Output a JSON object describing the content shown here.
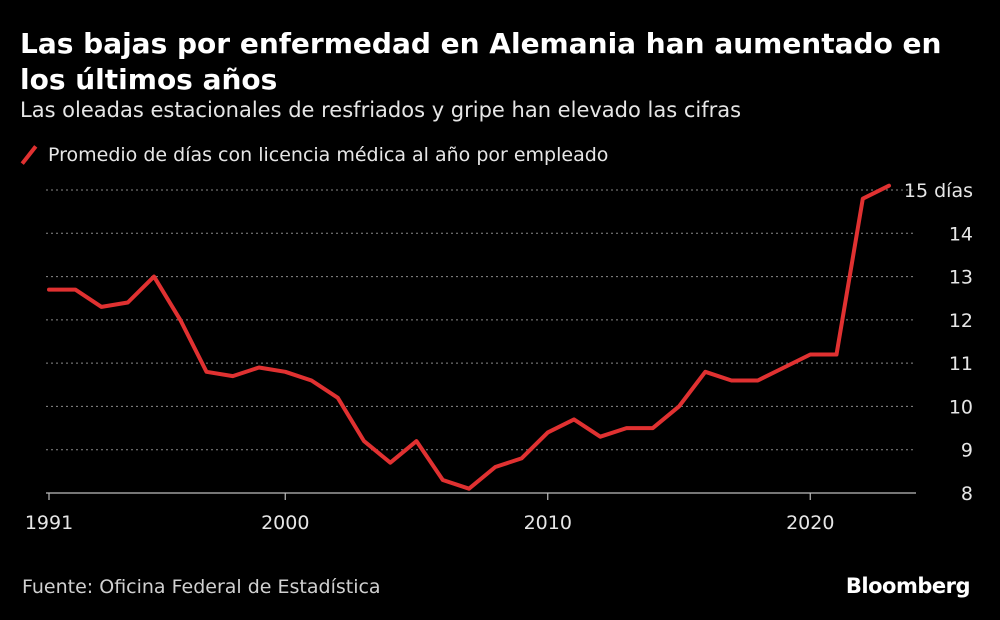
{
  "header": {
    "title": "Las bajas por enfermedad en Alemania han aumentado en los últimos años",
    "subtitle": "Las oleadas estacionales de resfriados y gripe han elevado las cifras"
  },
  "colors": {
    "line": "#e03131",
    "grid": "#8a8a8a",
    "axis": "#bdbdbd",
    "text": "#e6e6e6"
  },
  "chart_data": {
    "type": "line",
    "title": "Las bajas por enfermedad en Alemania han aumentado en los últimos años",
    "xlabel": "",
    "ylabel": "",
    "xlim": [
      1991,
      2023
    ],
    "ylim": [
      8,
      15
    ],
    "grid": true,
    "legend_position": "top-left",
    "x_ticks": [
      {
        "value": 1991,
        "label": "1991"
      },
      {
        "value": 2000,
        "label": "2000"
      },
      {
        "value": 2010,
        "label": "2010"
      },
      {
        "value": 2020,
        "label": "2020"
      }
    ],
    "y_ticks": [
      {
        "value": 8,
        "label": "8"
      },
      {
        "value": 9,
        "label": "9"
      },
      {
        "value": 10,
        "label": "10"
      },
      {
        "value": 11,
        "label": "11"
      },
      {
        "value": 12,
        "label": "12"
      },
      {
        "value": 13,
        "label": "13"
      },
      {
        "value": 14,
        "label": "14"
      },
      {
        "value": 15,
        "label": "15 días"
      }
    ],
    "series": [
      {
        "name": "Promedio de días con licencia médica al año por empleado",
        "x": [
          1991,
          1992,
          1993,
          1994,
          1995,
          1996,
          1997,
          1998,
          1999,
          2000,
          2001,
          2002,
          2003,
          2004,
          2005,
          2006,
          2007,
          2008,
          2009,
          2010,
          2011,
          2012,
          2013,
          2014,
          2015,
          2016,
          2017,
          2018,
          2019,
          2020,
          2021,
          2022,
          2023
        ],
        "values": [
          12.7,
          12.7,
          12.3,
          12.4,
          13.0,
          12.0,
          10.8,
          10.7,
          10.9,
          10.8,
          10.6,
          10.2,
          9.2,
          8.7,
          9.2,
          8.3,
          8.1,
          8.6,
          8.8,
          9.4,
          9.7,
          9.3,
          9.5,
          9.5,
          10.0,
          10.8,
          10.6,
          10.6,
          10.9,
          11.2,
          11.2,
          14.8,
          15.1
        ]
      }
    ]
  },
  "footer": {
    "source": "Fuente: Oficina Federal de Estadística",
    "brand": "Bloomberg"
  }
}
